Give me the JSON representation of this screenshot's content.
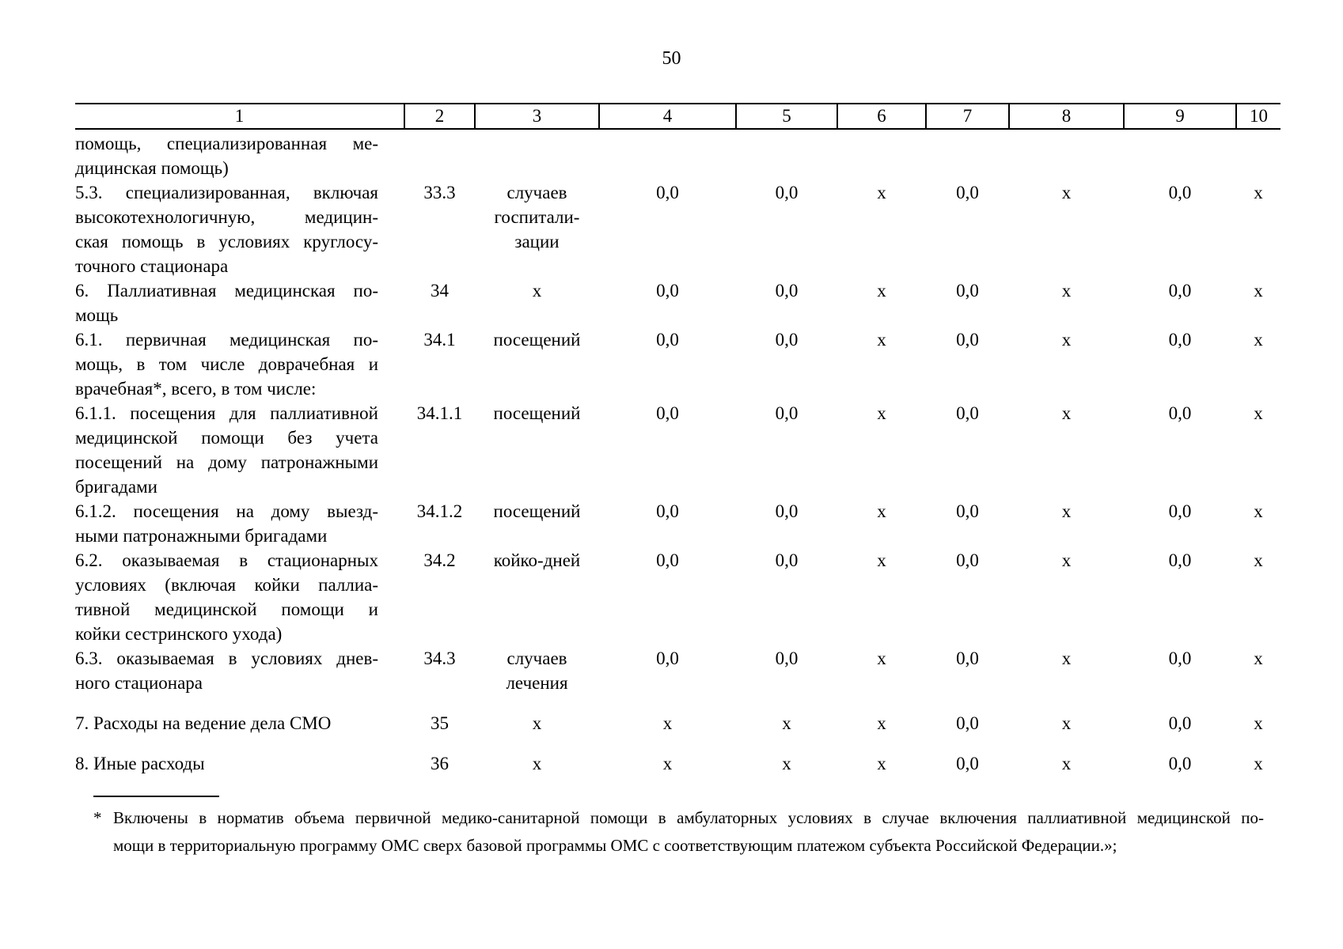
{
  "page": {
    "number": "50"
  },
  "table": {
    "column_numbers": [
      "1",
      "2",
      "3",
      "4",
      "5",
      "6",
      "7",
      "8",
      "9",
      "10"
    ],
    "rows": [
      {
        "spacer_before": false,
        "name_lines": [
          "помощь, специализированная ме-",
          "дицинская помощь)"
        ],
        "code": "",
        "unit_lines": [],
        "values": [
          "",
          "",
          "",
          "",
          "",
          "",
          ""
        ]
      },
      {
        "spacer_before": false,
        "name_lines": [
          "5.3. специализированная, включая",
          "высокотехнологичную, медицин-",
          "ская помощь в условиях круглосу-",
          "точного стационара"
        ],
        "code": "33.3",
        "unit_lines": [
          "случаев",
          "госпитали-",
          "зации"
        ],
        "values": [
          "0,0",
          "0,0",
          "х",
          "0,0",
          "х",
          "0,0",
          "х"
        ]
      },
      {
        "spacer_before": false,
        "name_lines": [
          "6. Паллиативная медицинская по-",
          "мощь"
        ],
        "code": "34",
        "unit_lines": [
          "х"
        ],
        "values": [
          "0,0",
          "0,0",
          "х",
          "0,0",
          "х",
          "0,0",
          "х"
        ]
      },
      {
        "spacer_before": false,
        "name_lines": [
          "6.1. первичная медицинская по-",
          "мощь, в том числе доврачебная и",
          "врачебная*, всего, в том числе:"
        ],
        "code": "34.1",
        "unit_lines": [
          "посещений"
        ],
        "values": [
          "0,0",
          "0,0",
          "х",
          "0,0",
          "х",
          "0,0",
          "х"
        ]
      },
      {
        "spacer_before": false,
        "name_lines": [
          "6.1.1. посещения для паллиативной",
          "медицинской помощи без учета",
          "посещений на дому патронажными",
          "бригадами"
        ],
        "code": "34.1.1",
        "unit_lines": [
          "посещений"
        ],
        "values": [
          "0,0",
          "0,0",
          "х",
          "0,0",
          "х",
          "0,0",
          "х"
        ]
      },
      {
        "spacer_before": false,
        "name_lines": [
          "6.1.2. посещения на дому выезд-",
          "ными патронажными бригадами"
        ],
        "code": "34.1.2",
        "unit_lines": [
          "посещений"
        ],
        "values": [
          "0,0",
          "0,0",
          "х",
          "0,0",
          "х",
          "0,0",
          "х"
        ]
      },
      {
        "spacer_before": false,
        "name_lines": [
          "6.2. оказываемая в стационарных",
          "условиях (включая койки паллиа-",
          "тивной медицинской помощи и",
          "койки сестринского ухода)"
        ],
        "code": "34.2",
        "unit_lines": [
          "койко-дней"
        ],
        "values": [
          "0,0",
          "0,0",
          "х",
          "0,0",
          "х",
          "0,0",
          "х"
        ]
      },
      {
        "spacer_before": false,
        "name_lines": [
          "6.3. оказываемая в условиях днев-",
          "ного стационара"
        ],
        "code": "34.3",
        "unit_lines": [
          "случаев",
          "лечения"
        ],
        "values": [
          "0,0",
          "0,0",
          "х",
          "0,0",
          "х",
          "0,0",
          "х"
        ]
      },
      {
        "spacer_before": true,
        "name_lines": [
          "7. Расходы на ведение дела СМО"
        ],
        "code": "35",
        "unit_lines": [
          "х"
        ],
        "values": [
          "х",
          "х",
          "х",
          "0,0",
          "х",
          "0,0",
          "х"
        ]
      },
      {
        "spacer_before": true,
        "name_lines": [
          "8. Иные расходы"
        ],
        "code": "36",
        "unit_lines": [
          "х"
        ],
        "values": [
          "х",
          "х",
          "х",
          "0,0",
          "х",
          "0,0",
          "х"
        ]
      }
    ]
  },
  "footnote": {
    "marker": "*",
    "lines": [
      "Включены в норматив объема первичной медико-санитарной помощи в амбулаторных условиях в случае включения паллиативной медицинской по-",
      "мощи в территориальную программу ОМС сверх базовой программы ОМС с соответствующим платежом субъекта Российской Федерации.»;"
    ]
  }
}
